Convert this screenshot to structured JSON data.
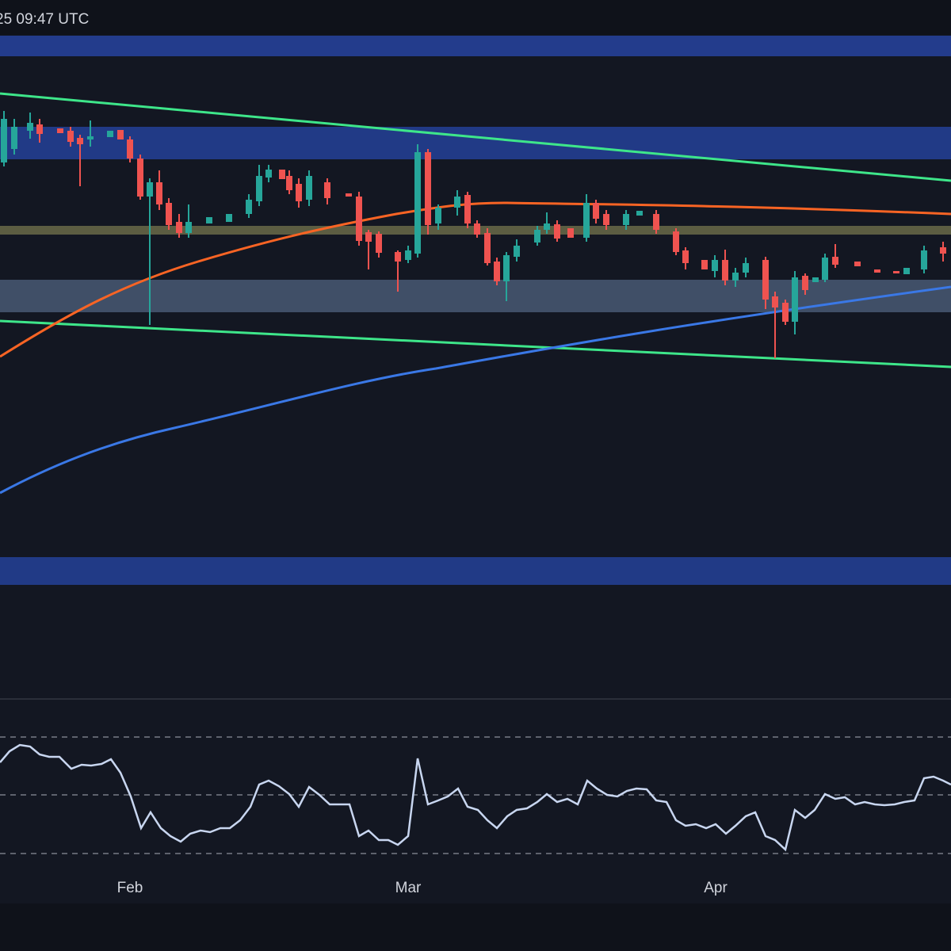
{
  "header": {
    "timestamp": "25 09:47 UTC"
  },
  "x_axis": {
    "labels": [
      "Feb",
      "Mar",
      "Apr"
    ]
  }
}
